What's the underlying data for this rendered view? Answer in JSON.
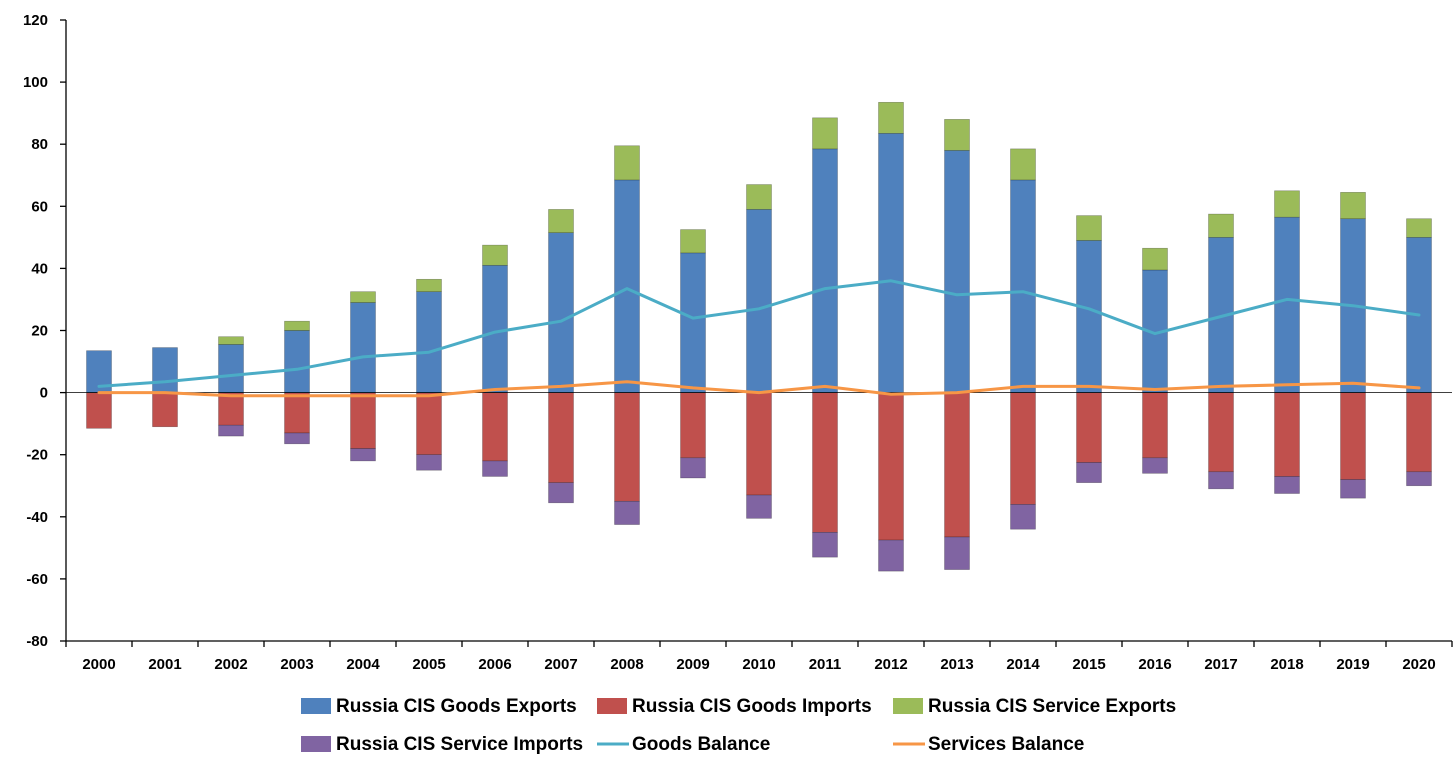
{
  "chart_data": {
    "type": "bar",
    "stacked": true,
    "title": "",
    "xlabel": "",
    "ylabel": "",
    "ylim": [
      -80,
      120
    ],
    "yticks": [
      -80,
      -60,
      -40,
      -20,
      0,
      20,
      40,
      60,
      80,
      100,
      120
    ],
    "grid": false,
    "legend_position": "bottom",
    "categories": [
      "2000",
      "2001",
      "2002",
      "2003",
      "2004",
      "2005",
      "2006",
      "2007",
      "2008",
      "2009",
      "2010",
      "2011",
      "2012",
      "2013",
      "2014",
      "2015",
      "2016",
      "2017",
      "2018",
      "2019",
      "2020"
    ],
    "series": [
      {
        "name": "Russia CIS Goods Exports",
        "kind": "bar",
        "color": "#4f81bd",
        "values": [
          13.5,
          14.5,
          15.5,
          20,
          29,
          32.5,
          41,
          51.5,
          68.5,
          45,
          59,
          78.5,
          83.5,
          78,
          68.5,
          49,
          39.5,
          50,
          56.5,
          56,
          50
        ]
      },
      {
        "name": "Russia CIS Goods Imports",
        "kind": "bar",
        "color": "#c0504d",
        "values": [
          -11.5,
          -11,
          -10.5,
          -13,
          -18,
          -20,
          -22,
          -29,
          -35,
          -21,
          -33,
          -45,
          -47.5,
          -46.5,
          -36,
          -22.5,
          -21,
          -25.5,
          -27,
          -28,
          -25.5
        ]
      },
      {
        "name": "Russia CIS Service Exports",
        "kind": "bar",
        "color": "#9bbb59",
        "values": [
          0,
          0,
          2.5,
          3,
          3.5,
          4,
          6.5,
          7.5,
          11,
          7.5,
          8,
          10,
          10,
          10,
          10,
          8,
          7,
          7.5,
          8.5,
          8.5,
          6
        ]
      },
      {
        "name": "Russia CIS Service Imports",
        "kind": "bar",
        "color": "#8064a2",
        "values": [
          0,
          0,
          -3.5,
          -3.5,
          -4,
          -5,
          -5,
          -6.5,
          -7.5,
          -6.5,
          -7.5,
          -8,
          -10,
          -10.5,
          -8,
          -6.5,
          -5,
          -5.5,
          -5.5,
          -6,
          -4.5
        ]
      },
      {
        "name": "Goods Balance",
        "kind": "line",
        "color": "#4bacc6",
        "values": [
          2,
          3.5,
          5.5,
          7.5,
          11.5,
          13,
          19.5,
          23,
          33.5,
          24,
          27,
          33.5,
          36,
          31.5,
          32.5,
          27,
          19,
          24.5,
          30,
          28,
          25
        ]
      },
      {
        "name": "Services Balance",
        "kind": "line",
        "color": "#f79646",
        "values": [
          0,
          0,
          -1,
          -1,
          -1,
          -1,
          1,
          2,
          3.5,
          1.5,
          0,
          2,
          -0.5,
          0,
          2,
          2,
          1,
          2,
          2.5,
          3,
          1.5
        ]
      }
    ],
    "legend_rows": [
      [
        "Russia CIS Goods Exports",
        "Russia CIS Goods Imports",
        "Russia CIS Service Exports"
      ],
      [
        "Russia CIS Service Imports",
        "Goods Balance",
        "Services Balance"
      ]
    ]
  }
}
